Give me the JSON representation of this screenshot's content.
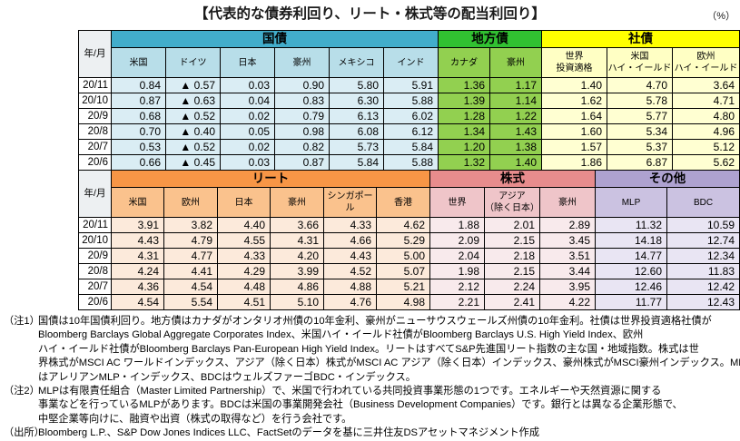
{
  "title": "【代表的な債券利回り、リート・株式等の配当利回り】",
  "unit_label": "（%）",
  "tables": [
    {
      "corner_label": "年/月",
      "groups": [
        {
          "label": "国債",
          "columns": [
            "米国",
            "ドイツ",
            "日本",
            "豪州",
            "メキシコ",
            "インド"
          ]
        },
        {
          "label": "地方債",
          "columns": [
            "カナダ",
            "豪州"
          ]
        },
        {
          "label": "社債",
          "columns": [
            "世界\n投資適格",
            "米国\nハイ・イールド",
            "欧州\nハイ・イールド"
          ]
        }
      ],
      "rows": [
        {
          "label": "20/11",
          "values": [
            "0.84",
            "▲ 0.57",
            "0.03",
            "0.90",
            "5.80",
            "5.91",
            "1.36",
            "1.17",
            "1.40",
            "4.70",
            "3.64"
          ]
        },
        {
          "label": "20/10",
          "values": [
            "0.87",
            "▲ 0.63",
            "0.04",
            "0.83",
            "6.30",
            "5.88",
            "1.39",
            "1.14",
            "1.62",
            "5.78",
            "4.71"
          ]
        },
        {
          "label": "20/9",
          "values": [
            "0.68",
            "▲ 0.52",
            "0.02",
            "0.79",
            "6.13",
            "6.02",
            "1.28",
            "1.22",
            "1.64",
            "5.77",
            "4.80"
          ]
        },
        {
          "label": "20/8",
          "values": [
            "0.70",
            "▲ 0.40",
            "0.05",
            "0.98",
            "6.08",
            "6.12",
            "1.34",
            "1.43",
            "1.60",
            "5.34",
            "4.96"
          ]
        },
        {
          "label": "20/7",
          "values": [
            "0.53",
            "▲ 0.52",
            "0.02",
            "0.82",
            "5.73",
            "5.84",
            "1.20",
            "1.38",
            "1.57",
            "5.37",
            "5.12"
          ]
        },
        {
          "label": "20/6",
          "values": [
            "0.66",
            "▲ 0.45",
            "0.03",
            "0.87",
            "5.84",
            "5.88",
            "1.32",
            "1.40",
            "1.86",
            "6.87",
            "5.62"
          ]
        }
      ]
    },
    {
      "corner_label": "年/月",
      "groups": [
        {
          "label": "リート",
          "columns": [
            "米国",
            "欧州",
            "日本",
            "豪州",
            "シンガポール",
            "香港"
          ]
        },
        {
          "label": "株式",
          "columns": [
            "世界",
            "アジア\n（除く日本）",
            "豪州"
          ]
        },
        {
          "label": "その他",
          "columns": [
            "MLP",
            "BDC"
          ]
        }
      ],
      "rows": [
        {
          "label": "20/11",
          "values": [
            "3.91",
            "3.82",
            "4.40",
            "3.66",
            "4.33",
            "4.62",
            "1.88",
            "2.01",
            "2.89",
            "11.32",
            "10.59"
          ]
        },
        {
          "label": "20/10",
          "values": [
            "4.43",
            "4.79",
            "4.55",
            "4.31",
            "4.66",
            "5.29",
            "2.09",
            "2.15",
            "3.45",
            "14.18",
            "12.74"
          ]
        },
        {
          "label": "20/9",
          "values": [
            "4.31",
            "4.77",
            "4.33",
            "4.20",
            "4.43",
            "5.00",
            "2.04",
            "2.18",
            "3.51",
            "14.77",
            "12.34"
          ]
        },
        {
          "label": "20/8",
          "values": [
            "4.24",
            "4.41",
            "4.29",
            "3.99",
            "4.52",
            "5.07",
            "1.98",
            "2.15",
            "3.44",
            "12.60",
            "11.83"
          ]
        },
        {
          "label": "20/7",
          "values": [
            "4.36",
            "4.54",
            "4.48",
            "4.86",
            "4.88",
            "5.21",
            "2.12",
            "2.24",
            "3.95",
            "12.46",
            "12.42"
          ]
        },
        {
          "label": "20/6",
          "values": [
            "4.54",
            "5.54",
            "4.51",
            "5.10",
            "4.76",
            "4.98",
            "2.21",
            "2.41",
            "4.22",
            "11.77",
            "12.43"
          ]
        }
      ]
    }
  ],
  "notes": [
    {
      "label": "（注1）",
      "lines": [
        "国債は10年国債利回り。地方債はカナダがオンタリオ州債の10年金利、豪州がニューサウスウェールズ州債の10年金利。社債は世界投資適格社債が",
        "Bloomberg Barclays Global Aggregate Corporates Index、米国ハイ・イールド社債がBloomberg Barclays U.S. High Yield Index、欧州",
        "ハイ・イールド社債がBloomberg Barclays Pan-European High Yield Index。リートはすべてS&P先進国リート指数の主な国・地域指数。株式は世",
        "界株式がMSCI AC ワールドインデックス、アジア（除く日本）株式がMSCI AC アジア（除く日本）インデックス、豪州株式がMSCI豪州インデックス。MLP",
        "はアレリアンMLP・インデックス、BDCはウェルズファーゴBDC・インデックス。"
      ]
    },
    {
      "label": "（注2）",
      "lines": [
        "MLPは有限責任組合（Master Limited Partnership）で、米国で行われている共同投資事業形態の1つです。エネルギーや天然資源に関する",
        "事業などを行っているMLPがあります。BDCは米国の事業開発会社（Business Development Companies）です。銀行とは異なる企業形態で、",
        "中堅企業等向けに、融資や出資（株式の取得など）を行う会社です。"
      ]
    },
    {
      "label": "（出所）",
      "lines": [
        "Bloomberg L.P.、S&P Dow Jones Indices LLC、FactSetのデータを基に三井住友DSアセットマネジメント作成"
      ]
    }
  ],
  "colors": {
    "govt_header": "#42ADCB",
    "govt_sub": "#B8DEE9",
    "govt_cell": "#DAEDF4",
    "muni_header": "#31C131",
    "muni_sub": "#92D050",
    "muni_cell": "#92D050",
    "corp_header": "#FFFF00",
    "corp_sub": "#FFFFC4",
    "corp_cell": "#FFFFD2",
    "reit_header": "#F79646",
    "reit_sub": "#FAC28D",
    "reit_cell": "#FCEADB",
    "equity_header": "#E78C8D",
    "equity_sub": "#EFC5C9",
    "equity_cell": "#F8EAEC",
    "other_header": "#AEA2D0",
    "other_sub": "#CBC2E1",
    "other_cell": "#E9E5F3",
    "corner_bg": "#EDF0F2"
  }
}
